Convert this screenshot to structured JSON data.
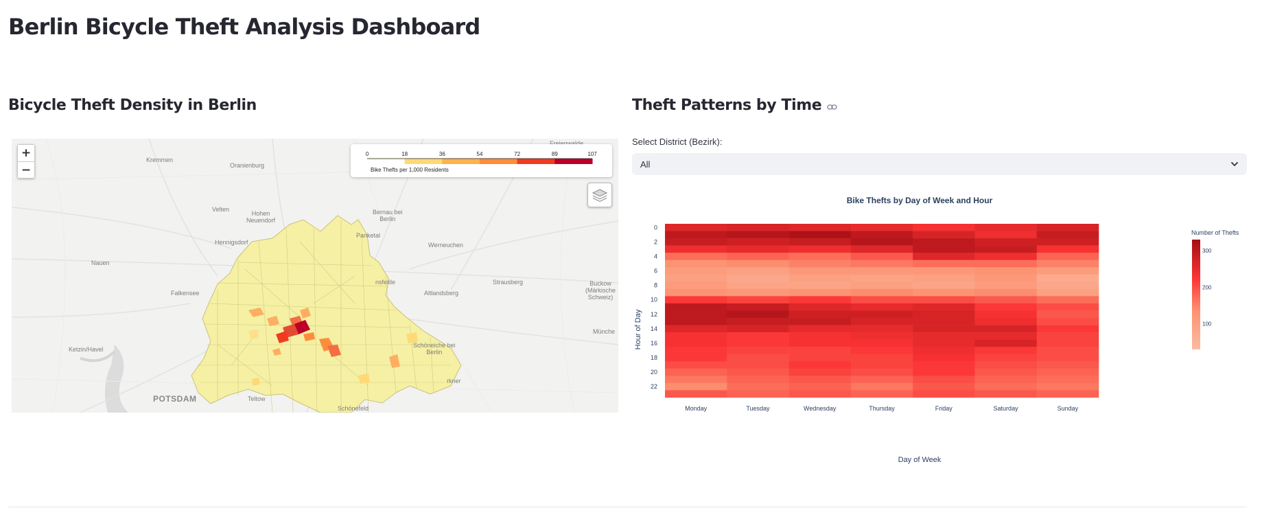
{
  "page": {
    "title": "Berlin Bicycle Theft Analysis Dashboard"
  },
  "map_section": {
    "title": "Bicycle Theft Density in Berlin",
    "zoom_in": "+",
    "zoom_out": "−",
    "legend": {
      "ticks": [
        "0",
        "18",
        "36",
        "54",
        "72",
        "89",
        "107"
      ],
      "caption": "Bike Thefts per 1,000 Residents",
      "colors": [
        "#ffffb2",
        "#fed976",
        "#feb24c",
        "#fd8d3c",
        "#f03b20",
        "#bd0026"
      ]
    },
    "places": {
      "kremmen": "Kremmen",
      "oranienburg": "Oranienburg",
      "freienwalde": "Freienwalde",
      "velten": "Velten",
      "hohen_neuendorf": "Hohen\nNeuendorf",
      "bernau": "Bernau bei\nBerlin",
      "hennigsdorf": "Hennigsdorf",
      "panketal": "Panketal",
      "nauen": "Nauen",
      "werneuchen": "Werneuchen",
      "ahrensfelde": "nsfelde",
      "falkensee": "Falkensee",
      "altlandsberg": "Altlandsberg",
      "strausberg": "Strausberg",
      "buckow": "Buckow\n(Märkische\nSchweiz)",
      "ketzin": "Ketzin/Havel",
      "schoeneiche": "Schöneiche bei\nBerlin",
      "muencheberg": "Münche",
      "potsdam": "POTSDAM",
      "teltow": "Teltow",
      "erkner": "rkner",
      "schoenefeld": "Schönefeld"
    }
  },
  "heatmap_section": {
    "title": "Theft Patterns by Time",
    "link_icon": "link-icon",
    "select_label": "Select District (Bezirk):",
    "select_value": "All"
  },
  "chart_data": {
    "type": "heatmap",
    "title": "Bike Thefts by Day of Week and Hour",
    "xlabel": "Day of Week",
    "ylabel": "Hour of Day",
    "x": [
      "Monday",
      "Tuesday",
      "Wednesday",
      "Thursday",
      "Friday",
      "Saturday",
      "Sunday"
    ],
    "y": [
      0,
      1,
      2,
      3,
      4,
      5,
      6,
      7,
      8,
      9,
      10,
      11,
      12,
      13,
      14,
      15,
      16,
      17,
      18,
      19,
      20,
      21,
      22,
      23
    ],
    "y_tick_labels": [
      "0",
      "2",
      "4",
      "6",
      "8",
      "10",
      "12",
      "14",
      "16",
      "18",
      "20",
      "22"
    ],
    "colorbar": {
      "title": "Number of Thefts",
      "ticks": [
        100,
        200,
        300
      ],
      "range": [
        30,
        330
      ]
    },
    "colorscale": "Reds",
    "values": [
      [
        260,
        270,
        260,
        250,
        230,
        250,
        270
      ],
      [
        300,
        310,
        320,
        300,
        270,
        240,
        290
      ],
      [
        290,
        280,
        290,
        310,
        300,
        280,
        280
      ],
      [
        240,
        250,
        240,
        260,
        300,
        290,
        230
      ],
      [
        170,
        180,
        170,
        190,
        260,
        240,
        180
      ],
      [
        130,
        140,
        150,
        160,
        170,
        170,
        150
      ],
      [
        110,
        100,
        120,
        120,
        120,
        130,
        110
      ],
      [
        100,
        80,
        100,
        90,
        100,
        120,
        70
      ],
      [
        110,
        90,
        90,
        100,
        90,
        110,
        80
      ],
      [
        130,
        120,
        130,
        140,
        130,
        140,
        100
      ],
      [
        220,
        210,
        220,
        200,
        200,
        190,
        170
      ],
      [
        300,
        290,
        260,
        250,
        260,
        220,
        200
      ],
      [
        300,
        310,
        280,
        280,
        270,
        230,
        190
      ],
      [
        300,
        290,
        290,
        270,
        270,
        240,
        200
      ],
      [
        260,
        270,
        250,
        250,
        270,
        270,
        220
      ],
      [
        230,
        220,
        230,
        240,
        250,
        250,
        210
      ],
      [
        230,
        220,
        230,
        230,
        250,
        270,
        210
      ],
      [
        220,
        210,
        210,
        220,
        240,
        220,
        200
      ],
      [
        220,
        200,
        210,
        210,
        230,
        210,
        200
      ],
      [
        200,
        200,
        220,
        210,
        220,
        200,
        190
      ],
      [
        180,
        190,
        210,
        200,
        220,
        190,
        180
      ],
      [
        160,
        180,
        190,
        180,
        200,
        180,
        170
      ],
      [
        140,
        170,
        180,
        160,
        190,
        170,
        160
      ],
      [
        190,
        180,
        190,
        180,
        200,
        190,
        180
      ]
    ]
  }
}
